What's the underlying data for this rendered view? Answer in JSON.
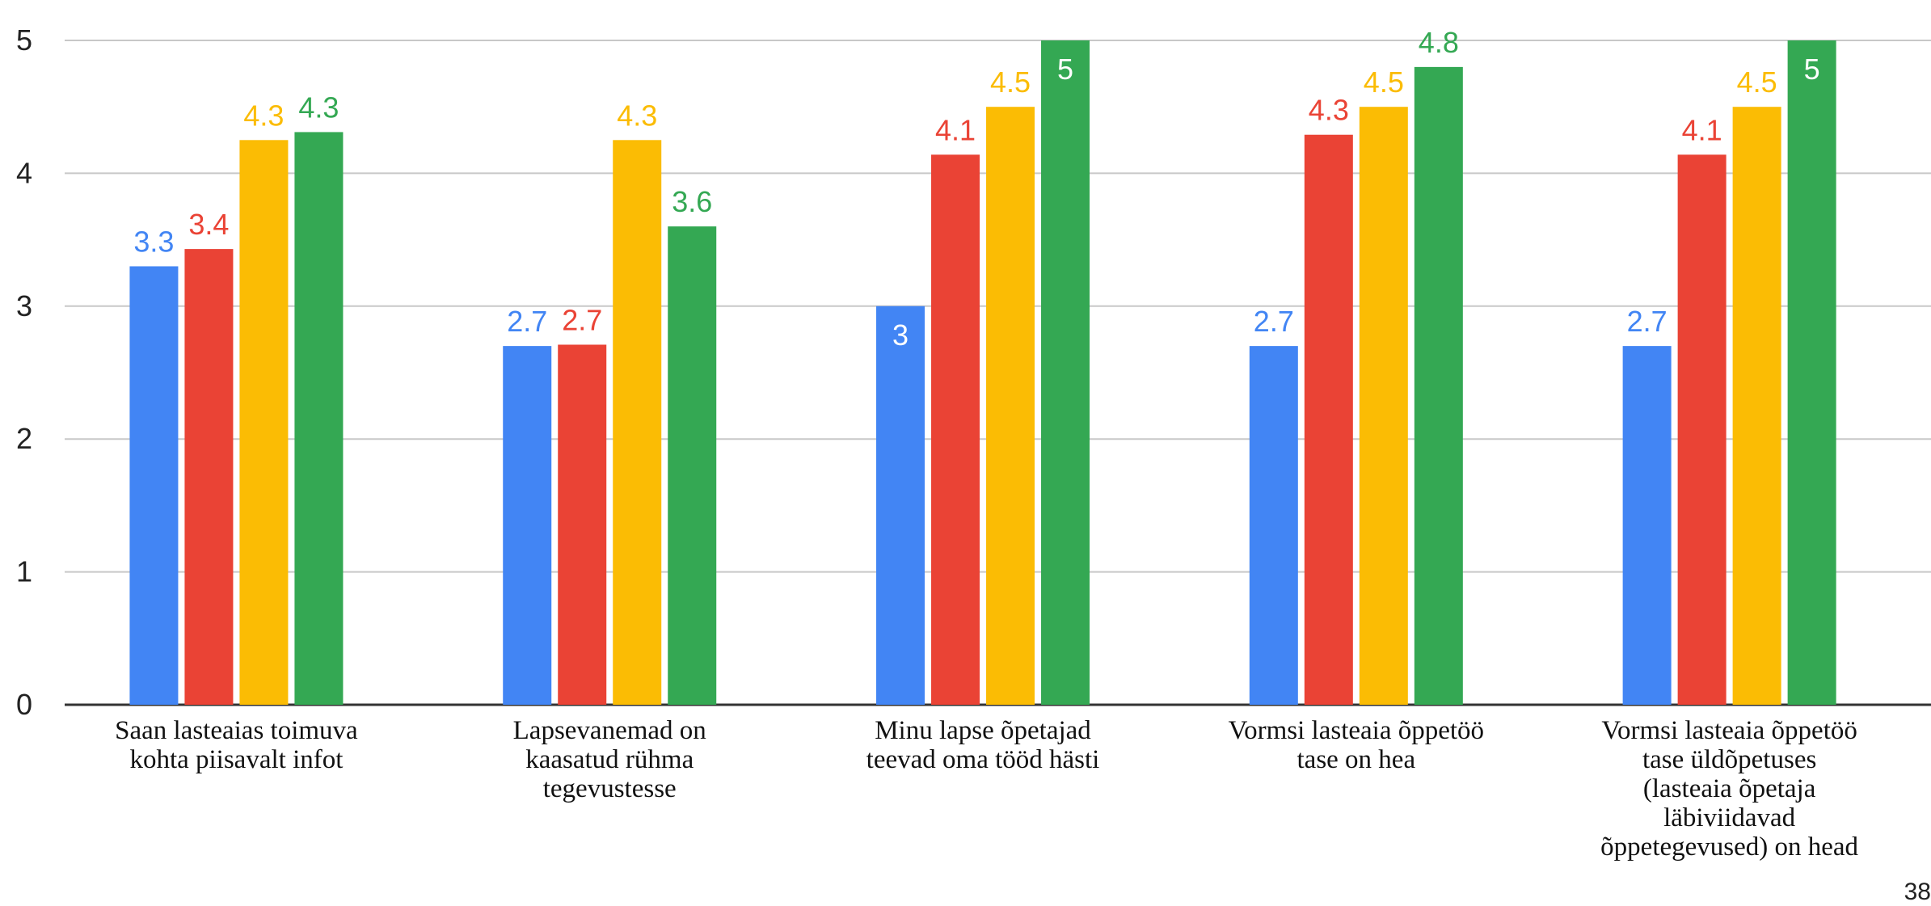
{
  "chart_data": {
    "type": "bar",
    "categories": [
      "Saan lasteaias toimuva kohta piisavalt infot",
      "Lapsevanemad on kaasatud rühma tegevustesse",
      "Minu lapse õpetajad teevad oma tööd hästi",
      "Vormsi lasteaia õppetöö tase on hea",
      "Vormsi lasteaia õppetöö tase üldõpetuses (lasteaia õpetaja läbiviidavad õppetegevused) on head"
    ],
    "series": [
      {
        "color": "#4285F4",
        "values": [
          3.3,
          2.7,
          3.0,
          2.7,
          2.7
        ],
        "labels": [
          "3.3",
          "2.7",
          "3",
          "2.7",
          "2.7"
        ],
        "label_inside": [
          false,
          false,
          true,
          false,
          false
        ]
      },
      {
        "color": "#EA4335",
        "values": [
          3.43,
          2.71,
          4.14,
          4.29,
          4.14
        ],
        "labels": [
          "3.4",
          "2.7",
          "4.1",
          "4.3",
          "4.1"
        ],
        "label_inside": [
          false,
          false,
          false,
          false,
          false
        ]
      },
      {
        "color": "#FBBC04",
        "values": [
          4.25,
          4.25,
          4.5,
          4.5,
          4.5
        ],
        "labels": [
          "4.3",
          "4.3",
          "4.5",
          "4.5",
          "4.5"
        ],
        "label_inside": [
          false,
          false,
          false,
          false,
          false
        ]
      },
      {
        "color": "#34A853",
        "values": [
          4.31,
          3.6,
          5.0,
          4.8,
          5.0
        ],
        "labels": [
          "4.3",
          "3.6",
          "5",
          "4.8",
          "5"
        ],
        "label_inside": [
          false,
          false,
          true,
          false,
          true
        ]
      }
    ],
    "yticks": [
      0,
      1,
      2,
      3,
      4,
      5
    ],
    "ylim": [
      0,
      5
    ],
    "grid": true,
    "legend": "none",
    "title": "",
    "xlabel": "",
    "ylabel": ""
  },
  "page_number": "38"
}
